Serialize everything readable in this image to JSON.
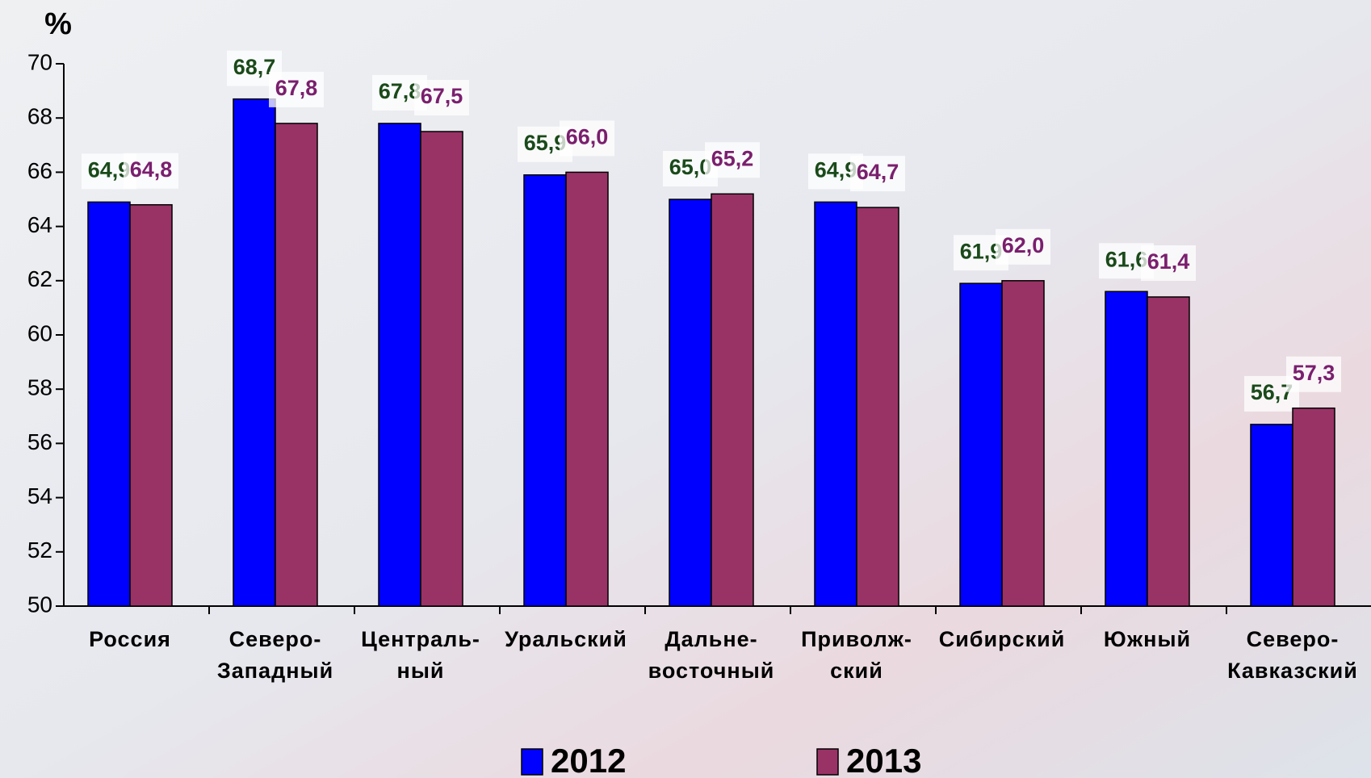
{
  "chart_data": {
    "type": "bar",
    "ylabel": "%",
    "categories": [
      "Россия",
      "Северо-\nЗападный",
      "Централь-\nный",
      "Уральский",
      "Дальне-\nвосточный",
      "Приволж-\nский",
      "Сибирский",
      "Южный",
      "Северо-\nКавказский"
    ],
    "series": [
      {
        "name": "2012",
        "color": "#0000ff",
        "label_color": "#1a4a1a",
        "values": [
          64.9,
          68.7,
          67.8,
          65.9,
          65.0,
          64.9,
          61.9,
          61.6,
          56.7
        ],
        "value_labels": [
          "64,9",
          "68,7",
          "67,8",
          "65,9",
          "65,0",
          "64,9",
          "61,9",
          "61,6",
          "56,7"
        ]
      },
      {
        "name": "2013",
        "color": "#993366",
        "label_color": "#7a1f6e",
        "values": [
          64.8,
          67.8,
          67.5,
          66.0,
          65.2,
          64.7,
          62.0,
          61.4,
          57.3
        ],
        "value_labels": [
          "64,8",
          "67,8",
          "67,5",
          "66,0",
          "65,2",
          "64,7",
          "62,0",
          "61,4",
          "57,3"
        ]
      }
    ],
    "ylim": [
      50,
      70
    ],
    "yticks": [
      50,
      52,
      54,
      56,
      58,
      60,
      62,
      64,
      66,
      68,
      70
    ]
  }
}
